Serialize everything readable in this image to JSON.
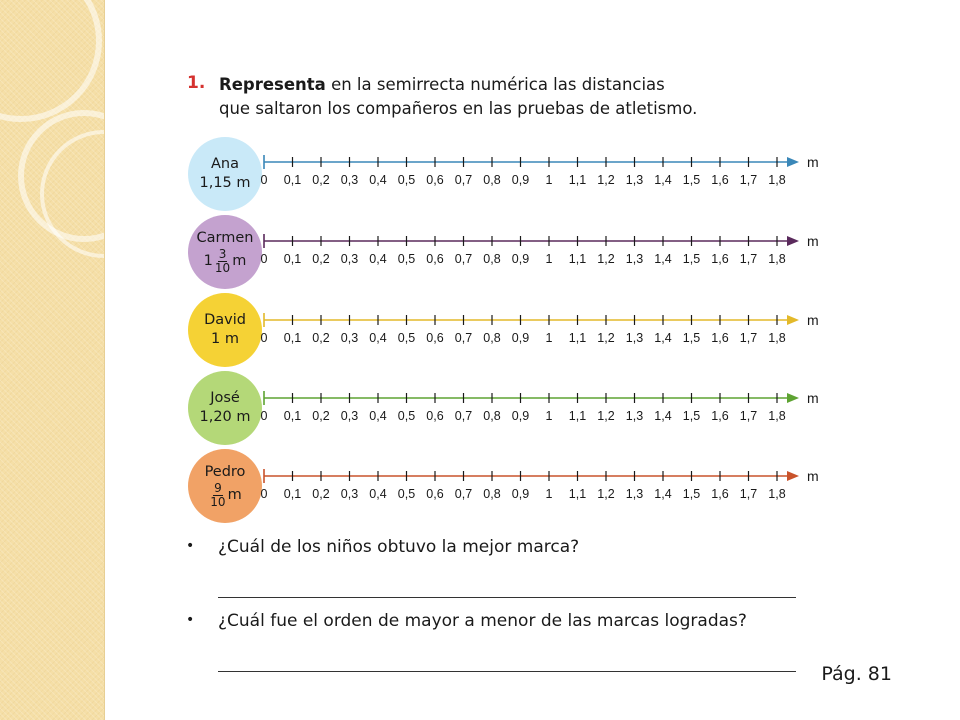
{
  "exercise": {
    "number": "1.",
    "bold_word": "Representa",
    "line1_rest": " en la semirrecta numérica las distancias",
    "line2": "que saltaron los compañeros en las pruebas de atletismo."
  },
  "tick_labels": [
    "0",
    "0,1",
    "0,2",
    "0,3",
    "0,4",
    "0,5",
    "0,6",
    "0,7",
    "0,8",
    "0,9",
    "1",
    "1,1",
    "1,2",
    "1,3",
    "1,4",
    "1,5",
    "1,6",
    "1,7",
    "1,8"
  ],
  "unit": "m",
  "students": [
    {
      "name": "Ana",
      "distance": "1,15 m",
      "value": 1.15,
      "circle_color": "#c9e9f8",
      "line_color": "#3a87b8"
    },
    {
      "name": "Carmen",
      "whole": "1",
      "num": "3",
      "den": "10",
      "unit": "m",
      "value": 1.3,
      "circle_color": "#c4a2cf",
      "line_color": "#5a2a5c"
    },
    {
      "name": "David",
      "distance": "1 m",
      "value": 1.0,
      "circle_color": "#f5d235",
      "line_color": "#e3b92a"
    },
    {
      "name": "José",
      "distance": "1,20 m",
      "value": 1.2,
      "circle_color": "#b4d878",
      "line_color": "#5ea332"
    },
    {
      "name": "Pedro",
      "whole": "",
      "num": "9",
      "den": "10",
      "unit": "m",
      "value": 0.9,
      "circle_color": "#f1a266",
      "line_color": "#c9532b"
    }
  ],
  "bullets": [
    "¿Cuál de los niños obtuvo la mejor marca?",
    "¿Cuál fue el orden de mayor a menor de las marcas logradas?"
  ],
  "page_ref": "Pág. 81"
}
